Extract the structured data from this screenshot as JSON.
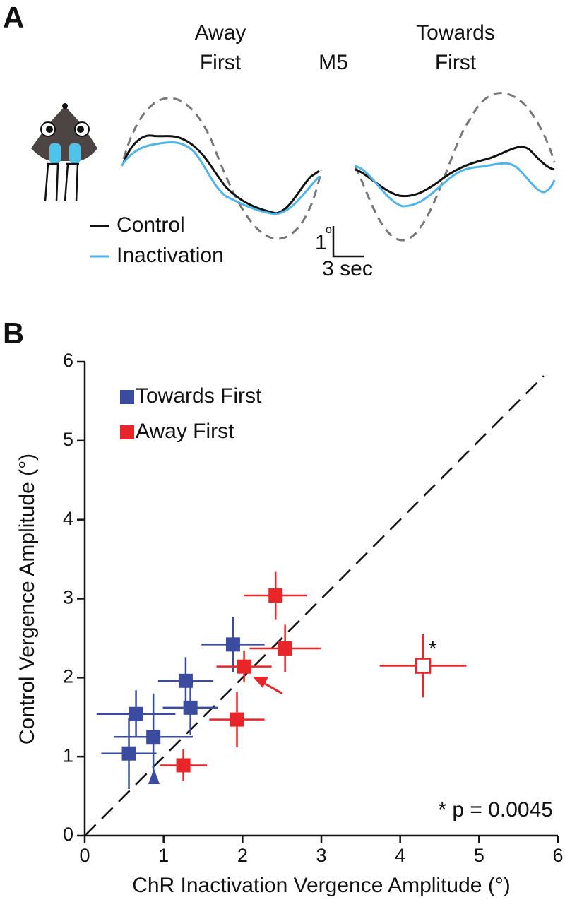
{
  "panel_a": {
    "label": "A",
    "away_first": [
      "Away",
      "First"
    ],
    "condition": "M5",
    "towards_first": [
      "Towards",
      "First"
    ],
    "legend": [
      "Control",
      "Inactivation"
    ],
    "scale_y": "1",
    "scale_y_unit": "o",
    "scale_x": "3 sec"
  },
  "chart_data": {
    "type": "scatter",
    "panel_label": "B",
    "xlabel": "ChR Inactivation Vergence Amplitude (°)",
    "ylabel": "Control Vergence Amplitude (°)",
    "xlim": [
      0,
      6
    ],
    "ylim": [
      0,
      6
    ],
    "xticks": [
      0,
      1,
      2,
      3,
      4,
      5,
      6
    ],
    "yticks": [
      0,
      1,
      2,
      3,
      4,
      5,
      6
    ],
    "identity_line": true,
    "legend": "upper left",
    "annotation": "* p = 0.0045",
    "point_annotation": "*",
    "series": [
      {
        "name": "Towards First",
        "color": "#3a4ba0",
        "x": [
          0.56,
          0.65,
          0.87,
          1.28,
          1.34,
          1.88
        ],
        "values": [
          1.04,
          1.54,
          1.25,
          1.96,
          1.62,
          2.42
        ],
        "xerr": [
          0.35,
          0.5,
          0.5,
          0.35,
          0.35,
          0.4
        ],
        "yerr": [
          0.45,
          0.3,
          0.55,
          0.3,
          0.35,
          0.35
        ],
        "open": [
          false,
          false,
          false,
          false,
          false,
          false
        ]
      },
      {
        "name": "Away First",
        "color": "#e8262a",
        "x": [
          1.25,
          1.93,
          2.02,
          2.42,
          2.54,
          4.29
        ],
        "values": [
          0.89,
          1.47,
          2.14,
          3.04,
          2.37,
          2.15
        ],
        "xerr": [
          0.3,
          0.35,
          0.35,
          0.4,
          0.45,
          0.55
        ],
        "yerr": [
          0.2,
          0.35,
          0.2,
          0.3,
          0.3,
          0.4
        ],
        "open": [
          false,
          false,
          false,
          false,
          false,
          true
        ]
      }
    ]
  }
}
